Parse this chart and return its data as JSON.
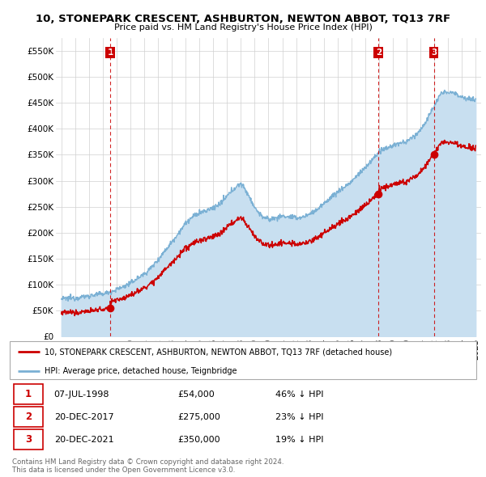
{
  "title": "10, STONEPARK CRESCENT, ASHBURTON, NEWTON ABBOT, TQ13 7RF",
  "subtitle": "Price paid vs. HM Land Registry's House Price Index (HPI)",
  "legend_line1": "10, STONEPARK CRESCENT, ASHBURTON, NEWTON ABBOT, TQ13 7RF (detached house)",
  "legend_line2": "HPI: Average price, detached house, Teignbridge",
  "sale_color": "#cc0000",
  "hpi_color": "#7ab0d4",
  "hpi_fill_color": "#c8dff0",
  "vline_color": "#cc0000",
  "transactions": [
    {
      "label": "1",
      "date_num": 1998.53,
      "price": 54000,
      "pct": "46% ↓ HPI",
      "date_str": "07-JUL-1998"
    },
    {
      "label": "2",
      "date_num": 2017.97,
      "price": 275000,
      "pct": "23% ↓ HPI",
      "date_str": "20-DEC-2017"
    },
    {
      "label": "3",
      "date_num": 2021.97,
      "price": 350000,
      "pct": "19% ↓ HPI",
      "date_str": "20-DEC-2021"
    }
  ],
  "ylim": [
    0,
    575000
  ],
  "yticks": [
    0,
    50000,
    100000,
    150000,
    200000,
    250000,
    300000,
    350000,
    400000,
    450000,
    500000,
    550000
  ],
  "xlim": [
    1994.6,
    2025.4
  ],
  "hpi_key_years": [
    1995.0,
    1995.5,
    1996.0,
    1996.5,
    1997.0,
    1997.5,
    1998.0,
    1998.5,
    1999.0,
    1999.5,
    2000.0,
    2000.5,
    2001.0,
    2001.5,
    2002.0,
    2002.5,
    2003.0,
    2003.5,
    2004.0,
    2004.5,
    2005.0,
    2005.5,
    2006.0,
    2006.5,
    2007.0,
    2007.5,
    2008.0,
    2008.5,
    2009.0,
    2009.5,
    2010.0,
    2010.5,
    2011.0,
    2011.5,
    2012.0,
    2012.5,
    2013.0,
    2013.5,
    2014.0,
    2014.5,
    2015.0,
    2015.5,
    2016.0,
    2016.5,
    2017.0,
    2017.5,
    2018.0,
    2018.5,
    2019.0,
    2019.5,
    2020.0,
    2020.5,
    2021.0,
    2021.5,
    2022.0,
    2022.5,
    2023.0,
    2023.5,
    2024.0,
    2024.5,
    2025.0
  ],
  "hpi_key_vals": [
    72000,
    73000,
    74000,
    76000,
    78000,
    80000,
    82000,
    85000,
    90000,
    96000,
    102000,
    112000,
    120000,
    132000,
    148000,
    165000,
    182000,
    200000,
    218000,
    230000,
    238000,
    242000,
    248000,
    255000,
    270000,
    285000,
    295000,
    275000,
    248000,
    232000,
    225000,
    228000,
    232000,
    230000,
    228000,
    230000,
    236000,
    244000,
    255000,
    268000,
    278000,
    288000,
    298000,
    312000,
    325000,
    340000,
    355000,
    362000,
    368000,
    372000,
    375000,
    385000,
    398000,
    418000,
    445000,
    468000,
    472000,
    468000,
    462000,
    458000,
    455000
  ],
  "footer1": "Contains HM Land Registry data © Crown copyright and database right 2024.",
  "footer2": "This data is licensed under the Open Government Licence v3.0."
}
